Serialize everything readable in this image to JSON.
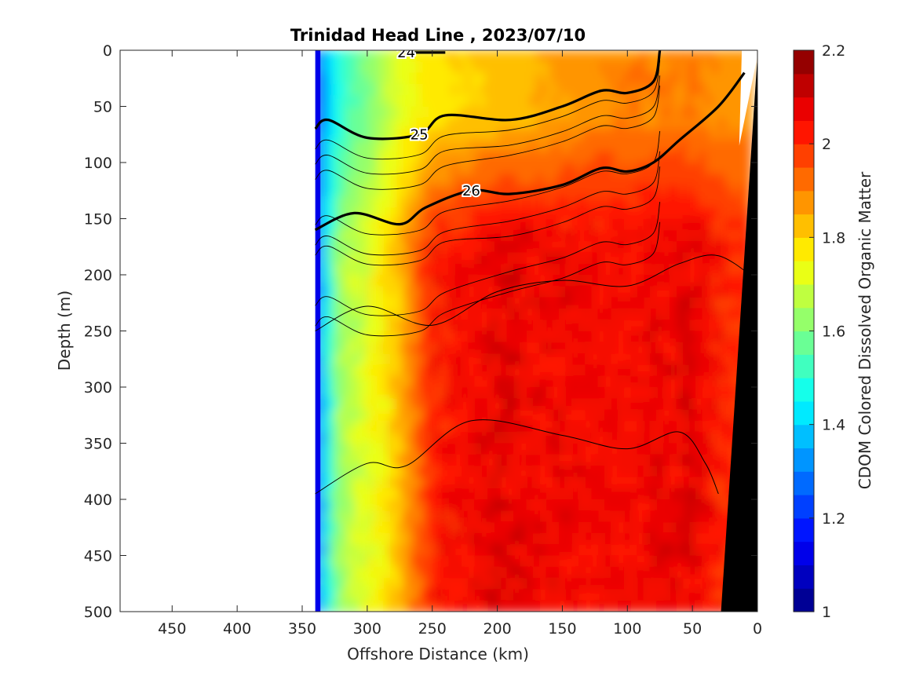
{
  "chart_data": {
    "type": "heatmap",
    "subtype": "filled contour section with density contour overlay",
    "title": "Trinidad Head Line , 2023/07/10",
    "xlabel": "Offshore Distance (km)",
    "ylabel": "Depth (m)",
    "xlim": [
      490,
      0
    ],
    "x_direction": "reversed (offshore distance decreasing left to right)",
    "ylim": [
      0,
      500
    ],
    "y_direction": "reversed (depth increasing downward)",
    "x_ticks": [
      "450",
      "400",
      "350",
      "300",
      "250",
      "200",
      "150",
      "100",
      "50",
      "0"
    ],
    "y_ticks": [
      "0",
      "50",
      "100",
      "150",
      "200",
      "250",
      "300",
      "350",
      "400",
      "450",
      "500"
    ],
    "grid": false,
    "colorbar": {
      "label": "CDOM Colored Dissolved Organic Matter",
      "range": [
        1,
        2.2
      ],
      "levels": 24,
      "colormap": "jet",
      "ticks": [
        "1",
        "1.2",
        "1.4",
        "1.6",
        "1.8",
        "2",
        "2.2"
      ]
    },
    "section_extent_km": [
      340,
      5
    ],
    "cdom_field_description": {
      "x_km": [
        340,
        330,
        320,
        300,
        280,
        260,
        250,
        200,
        150,
        100,
        50,
        20
      ],
      "surface_0_100m": [
        1.2,
        1.4,
        1.5,
        1.6,
        1.7,
        1.75,
        1.78,
        1.82,
        1.86,
        1.9,
        1.9,
        1.88
      ],
      "depth_150_500m": [
        1.2,
        1.5,
        1.65,
        1.72,
        1.8,
        1.95,
        2.02,
        2.08,
        2.06,
        2.05,
        2.08,
        2.0
      ]
    },
    "density_contours": [
      {
        "label": "24",
        "bold": true,
        "x": [
          270,
          240
        ],
        "depth": [
          2,
          2
        ]
      },
      {
        "label": "25",
        "bold": true,
        "x": [
          340,
          330,
          300,
          260,
          240,
          190,
          150,
          120,
          100,
          80,
          75
        ],
        "depth": [
          70,
          62,
          78,
          75,
          58,
          62,
          50,
          36,
          38,
          28,
          0
        ]
      },
      {
        "label": "26",
        "bold": true,
        "x": [
          340,
          310,
          275,
          255,
          220,
          190,
          150,
          120,
          100,
          80,
          60,
          30,
          10
        ],
        "depth": [
          160,
          145,
          155,
          140,
          125,
          128,
          120,
          105,
          108,
          100,
          80,
          50,
          20
        ]
      },
      {
        "label": "",
        "bold": false,
        "x": [
          340,
          300,
          250,
          200,
          150,
          100,
          60,
          30,
          0
        ],
        "depth": [
          250,
          228,
          245,
          215,
          205,
          210,
          190,
          183,
          205
        ]
      },
      {
        "label": "",
        "bold": false,
        "x": [
          340,
          300,
          270,
          220,
          150,
          100,
          60,
          40,
          30
        ],
        "depth": [
          395,
          368,
          370,
          330,
          343,
          355,
          340,
          368,
          395
        ]
      }
    ],
    "bathymetry_mask": {
      "color": "#000000",
      "x_km": [
        28,
        0
      ],
      "depth_m": [
        500,
        5
      ]
    }
  }
}
